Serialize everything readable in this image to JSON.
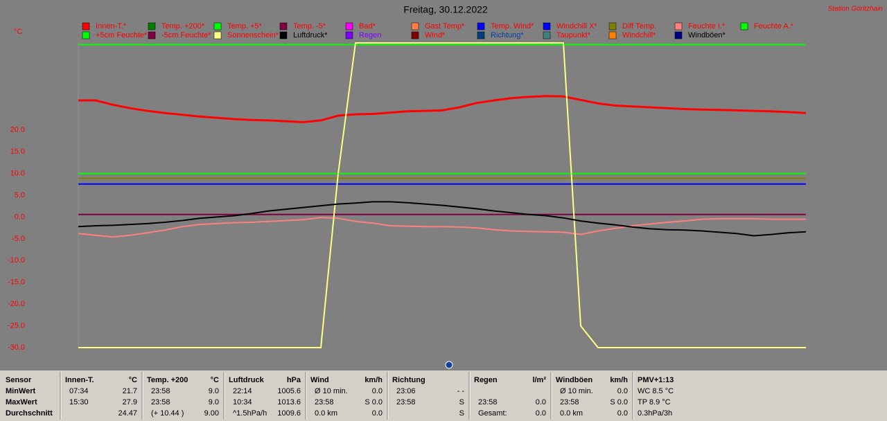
{
  "chart_data": {
    "type": "line",
    "title": "Freitag, 30.12.2022",
    "station": "Station Göritzhain",
    "y_unit": "°C",
    "ylim": [
      -30,
      40
    ],
    "yticks": [
      {
        "value": 20,
        "label": "20.0"
      },
      {
        "value": 15,
        "label": "15.0"
      },
      {
        "value": 10,
        "label": "10.0"
      },
      {
        "value": 5,
        "label": "5.0"
      },
      {
        "value": 0,
        "label": "0.0"
      },
      {
        "value": -5,
        "label": "-5.0"
      },
      {
        "value": -10,
        "label": "-10.0"
      },
      {
        "value": -15,
        "label": "-15.0"
      },
      {
        "value": -20,
        "label": "-20.0"
      },
      {
        "value": -25,
        "label": "-25.0"
      },
      {
        "value": -30,
        "label": "-30.0"
      }
    ],
    "series": [
      {
        "name": "Innen-T.*",
        "color": "#ff0000",
        "values": [
          26.8,
          26.8,
          25.8,
          25.0,
          24.4,
          23.9,
          23.5,
          23.1,
          22.8,
          22.5,
          22.3,
          22.2,
          22.0,
          21.8,
          22.2,
          23.3,
          23.6,
          23.7,
          24.0,
          24.3,
          24.4,
          24.5,
          25.2,
          26.2,
          26.8,
          27.3,
          27.6,
          27.8,
          27.7,
          26.9,
          26.1,
          25.6,
          25.4,
          25.2,
          25.0,
          24.8,
          24.7,
          24.6,
          24.5,
          24.4,
          24.3,
          24.1,
          23.9
        ]
      },
      {
        "name": "Temp. +200*",
        "color": "#008000"
      },
      {
        "name": "Temp. +5*",
        "color": "#00ff00",
        "values": [
          10,
          10,
          10,
          10,
          10,
          10,
          10,
          10,
          10,
          10,
          10,
          10,
          10,
          10,
          10,
          10,
          10,
          10,
          10,
          10,
          10,
          10,
          10,
          10,
          10,
          10,
          10,
          10,
          10,
          10,
          10,
          10,
          10,
          10,
          10,
          10,
          10,
          10,
          10,
          10,
          10,
          10,
          10
        ]
      },
      {
        "name": "Temp. -5*",
        "color": "#800040",
        "values": [
          0.6,
          0.6,
          0.6,
          0.6,
          0.6,
          0.6,
          0.6,
          0.6,
          0.6,
          0.6,
          0.6,
          0.6,
          0.6,
          0.6,
          0.6,
          0.6,
          0.6,
          0.6,
          0.6,
          0.6,
          0.6,
          0.6,
          0.6,
          0.6,
          0.6,
          0.6,
          0.6,
          0.6,
          0.6,
          0.6,
          0.6,
          0.6,
          0.6,
          0.6,
          0.6,
          0.6,
          0.6,
          0.6,
          0.6,
          0.6,
          0.6,
          0.6,
          0.6
        ]
      },
      {
        "name": "Bad*",
        "color": "#ff00ff"
      },
      {
        "name": "Gast Temp*",
        "color": "#ff8040"
      },
      {
        "name": "Temp. Wind*",
        "color": "#0000ff",
        "values": [
          7.6,
          7.6,
          7.6,
          7.6,
          7.6,
          7.6,
          7.6,
          7.6,
          7.6,
          7.6,
          7.6,
          7.6,
          7.6,
          7.6,
          7.6,
          7.6,
          7.6,
          7.6,
          7.6,
          7.6,
          7.6,
          7.6,
          7.6,
          7.6,
          7.6,
          7.6,
          7.6,
          7.6,
          7.6,
          7.6,
          7.6,
          7.6,
          7.6,
          7.6,
          7.6,
          7.6,
          7.6,
          7.6,
          7.6,
          7.6,
          7.6,
          7.6,
          7.6
        ]
      },
      {
        "name": "Windchill X*",
        "color": "#0000ff"
      },
      {
        "name": "Diff Temp.",
        "color": "#808000",
        "values": [
          8.9,
          8.9,
          8.9,
          8.9,
          8.9,
          8.9,
          8.9,
          8.9,
          8.9,
          8.9,
          8.9,
          8.9,
          8.9,
          8.9,
          8.9,
          8.9,
          8.9,
          8.9,
          8.9,
          8.9,
          8.9,
          8.9,
          8.9,
          8.9,
          8.9,
          8.9,
          8.9,
          8.9,
          8.9,
          8.9,
          8.9,
          8.9,
          8.9,
          8.9,
          8.9,
          8.9,
          8.9,
          8.9,
          8.9,
          8.9,
          8.9,
          8.9,
          8.9
        ]
      },
      {
        "name": "Feuchte I.*",
        "color": "#ff8080",
        "values": [
          -3.8,
          -4.2,
          -4.6,
          -4.2,
          -3.6,
          -3.0,
          -2.2,
          -1.7,
          -1.5,
          -1.3,
          -1.2,
          -1.0,
          -0.8,
          -0.6,
          -0.1,
          -0.3,
          -1.0,
          -1.4,
          -2.0,
          -2.1,
          -2.2,
          -2.2,
          -2.3,
          -2.5,
          -2.9,
          -3.2,
          -3.3,
          -3.4,
          -3.5,
          -4.0,
          -3.2,
          -2.6,
          -2.0,
          -1.6,
          -1.2,
          -0.9,
          -0.5,
          -0.4,
          -0.4,
          -0.4,
          -0.5,
          -0.5,
          -0.5
        ]
      },
      {
        "name": "Feuchte A.*",
        "color": "#00ff00"
      },
      {
        "name": "+5cm Feuchte*",
        "color": "#00ff00",
        "values": [
          39.6,
          39.6,
          39.6,
          39.6,
          39.6,
          39.6,
          39.6,
          39.6,
          39.6,
          39.6,
          39.6,
          39.6,
          39.6,
          39.6,
          39.6,
          39.6,
          39.6,
          39.6,
          39.6,
          39.6,
          39.6,
          39.6,
          39.6,
          39.6,
          39.6,
          39.6,
          39.6,
          39.6,
          39.6,
          39.6,
          39.6,
          39.6,
          39.6,
          39.6,
          39.6,
          39.6,
          39.6,
          39.6,
          39.6,
          39.6,
          39.6,
          39.6,
          39.6
        ]
      },
      {
        "name": "-5cm Feuchte*",
        "color": "#800040"
      },
      {
        "name": "Sonnenschein*",
        "color": "#ffff80",
        "values": [
          -30,
          -30,
          -30,
          -30,
          -30,
          -30,
          -30,
          -30,
          -30,
          -30,
          -30,
          -30,
          -30,
          -30,
          -30,
          10,
          40,
          40,
          40,
          40,
          40,
          40,
          40,
          40,
          40,
          40,
          40,
          40,
          40,
          -25,
          -30,
          -30,
          -30,
          -30,
          -30,
          -30,
          -30,
          -30,
          -30,
          -30,
          -30,
          -30,
          -30
        ]
      },
      {
        "name": "Luftdruck*",
        "color": "#000000",
        "label_color": "#000000",
        "values": [
          -2.2,
          -2.0,
          -1.9,
          -1.7,
          -1.5,
          -1.2,
          -0.8,
          -0.3,
          0.0,
          0.3,
          0.8,
          1.4,
          1.8,
          2.2,
          2.6,
          3.0,
          3.2,
          3.5,
          3.5,
          3.3,
          3.0,
          2.7,
          2.3,
          1.9,
          1.4,
          1.0,
          0.6,
          0.3,
          -0.2,
          -0.9,
          -1.4,
          -1.8,
          -2.3,
          -2.7,
          -2.9,
          -3.0,
          -3.2,
          -3.5,
          -3.8,
          -4.3,
          -4.0,
          -3.6,
          -3.4
        ]
      },
      {
        "name": "Regen",
        "color": "#8000ff",
        "label_color": "#8000ff"
      },
      {
        "name": "Wind*",
        "color": "#800000"
      },
      {
        "name": "Richtung*",
        "color": "#004080",
        "label_color": "#0040a0"
      },
      {
        "name": "Taupunkt*",
        "color": "#408080"
      },
      {
        "name": "Windchill*",
        "color": "#ff8000"
      },
      {
        "name": "Windböen*",
        "color": "#000080",
        "label_color": "#000000"
      }
    ]
  },
  "table": {
    "row_labels": [
      "Sensor",
      "MinWert",
      "MaxWert",
      "Durchschnitt"
    ],
    "columns": [
      {
        "header": "Innen-T.",
        "unit": "°C",
        "rows": [
          [
            "07:34",
            "21.7"
          ],
          [
            "15:30",
            "27.9"
          ],
          [
            null,
            "24.47"
          ]
        ]
      },
      {
        "header": "Temp. +200",
        "unit": "°C",
        "rows": [
          [
            "23:58",
            "9.0"
          ],
          [
            "23:58",
            "9.0"
          ],
          [
            "(+ 10.44 )",
            "9.00"
          ]
        ]
      },
      {
        "header": "Luftdruck",
        "unit": "hPa",
        "rows": [
          [
            "22:14",
            "1005.6"
          ],
          [
            "10:34",
            "1013.6"
          ],
          [
            "^1.5hPa/h",
            "1009.6"
          ]
        ]
      },
      {
        "header": "Wind",
        "unit": "km/h",
        "rows": [
          [
            "Ø 10 min.",
            "0.0"
          ],
          [
            "23:58",
            "S 0.0"
          ],
          [
            "0.0 km",
            "0.0"
          ]
        ]
      },
      {
        "header": "Richtung",
        "rows": [
          [
            "23:06",
            "- -"
          ],
          [
            "23:58",
            "S"
          ],
          [
            null,
            "S"
          ]
        ]
      },
      {
        "header": "Regen",
        "unit": "l/m²",
        "rows": [
          [
            null,
            null
          ],
          [
            "23:58",
            "0.0"
          ],
          [
            "Gesamt:",
            "0.0"
          ]
        ]
      },
      {
        "header": "Windböen",
        "unit": "km/h",
        "rows": [
          [
            "Ø 10 min.",
            "0.0"
          ],
          [
            "23:58",
            "S 0.0"
          ],
          [
            "0.0 km",
            "0.0"
          ]
        ]
      },
      {
        "header": "PMV+1:13",
        "rows": [
          [
            "WC 8.5 °C",
            null
          ],
          [
            "TP 8.9 °C",
            null
          ],
          [
            "0.3hPa/3h",
            null
          ]
        ]
      }
    ]
  }
}
